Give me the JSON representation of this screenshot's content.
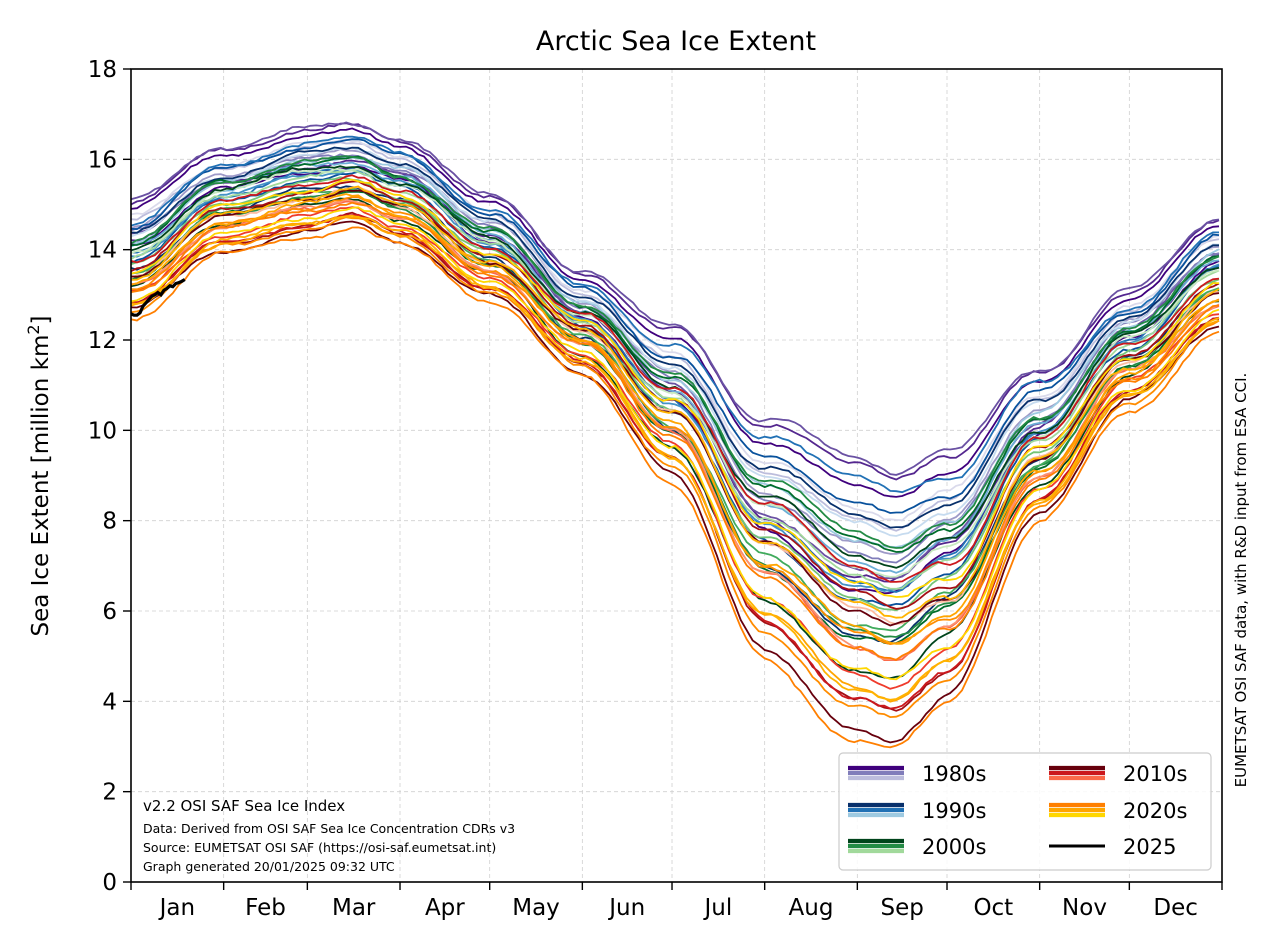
{
  "chart_data": {
    "type": "line",
    "title": "Arctic Sea Ice Extent",
    "ylabel_main": "Sea Ice Extent [million km",
    "ylabel_sup": "2",
    "ylabel_end": "]",
    "ylim": [
      0,
      18
    ],
    "yticks": [
      0,
      2,
      4,
      6,
      8,
      10,
      12,
      14,
      16,
      18
    ],
    "xlim": [
      1,
      366
    ],
    "month_labels": [
      "Jan",
      "Feb",
      "Mar",
      "Apr",
      "May",
      "Jun",
      "Jul",
      "Aug",
      "Sep",
      "Oct",
      "Nov",
      "Dec"
    ],
    "grid": true,
    "legend_position": "lower-right",
    "legend": [
      {
        "label": "1980s",
        "colors": [
          "#3f007d",
          "#807dba",
          "#bcbddc"
        ]
      },
      {
        "label": "2010s",
        "colors": [
          "#67000d",
          "#cb181d",
          "#fb6a4a"
        ]
      },
      {
        "label": "1990s",
        "colors": [
          "#08306b",
          "#2171b5",
          "#9ecae1"
        ]
      },
      {
        "label": "2020s",
        "colors": [
          "#ff7f00",
          "#ffa500",
          "#ffd700"
        ]
      },
      {
        "label": "2000s",
        "colors": [
          "#00441b",
          "#238b45",
          "#a1d99b"
        ]
      },
      {
        "label": "2025",
        "colors": [
          "#000000"
        ]
      }
    ],
    "climatology_anchor_days": [
      1,
      32,
      60,
      75,
      91,
      121,
      152,
      182,
      213,
      244,
      256,
      274,
      305,
      335,
      366
    ],
    "decades": [
      {
        "name": "1980s",
        "colors": [
          "#3f007d",
          "#54278f",
          "#6a51a3",
          "#807dba",
          "#9e9ac8",
          "#bcbddc",
          "#dadaeb"
        ],
        "anchors": [
          14.6,
          15.8,
          16.2,
          16.3,
          16.0,
          14.7,
          13.0,
          11.5,
          9.0,
          7.9,
          7.7,
          8.4,
          10.6,
          12.6,
          14.2
        ]
      },
      {
        "name": "1990s",
        "colors": [
          "#08306b",
          "#08519c",
          "#2171b5",
          "#4292c6",
          "#6baed6",
          "#9ecae1",
          "#c6dbef"
        ],
        "anchors": [
          14.1,
          15.4,
          15.9,
          16.0,
          15.7,
          14.4,
          12.7,
          11.0,
          8.5,
          7.3,
          7.1,
          7.7,
          10.3,
          12.2,
          13.9
        ]
      },
      {
        "name": "2000s",
        "colors": [
          "#00441b",
          "#006d2c",
          "#238b45",
          "#41ab5d",
          "#74c476",
          "#a1d99b",
          "#c7e9c0"
        ],
        "anchors": [
          13.7,
          15.1,
          15.5,
          15.6,
          15.2,
          14.0,
          12.3,
          10.5,
          7.8,
          6.4,
          6.2,
          6.9,
          9.6,
          11.8,
          13.4
        ]
      },
      {
        "name": "2010s",
        "colors": [
          "#67000d",
          "#a50f15",
          "#cb181d",
          "#ef3b2c",
          "#fb6a4a",
          "#fc9272",
          "#fcbba1"
        ],
        "anchors": [
          13.2,
          14.5,
          14.9,
          15.1,
          14.7,
          13.5,
          11.9,
          10.0,
          6.8,
          5.2,
          4.9,
          5.6,
          9.0,
          11.3,
          12.8
        ]
      },
      {
        "name": "2020s",
        "colors": [
          "#ff7f00",
          "#ff8c00",
          "#ffa500",
          "#ffb300",
          "#ffd700"
        ],
        "anchors": [
          13.0,
          14.4,
          14.8,
          15.0,
          14.6,
          13.4,
          11.8,
          9.8,
          6.5,
          5.0,
          4.7,
          5.4,
          8.8,
          11.0,
          12.7
        ]
      }
    ],
    "current_year": {
      "name": "2025",
      "color": "#000000",
      "days": [
        1,
        2,
        3,
        4,
        5,
        6,
        7,
        8,
        9,
        10,
        11,
        12,
        13,
        14,
        15,
        16,
        17,
        18,
        19
      ],
      "values": [
        12.58,
        12.55,
        12.55,
        12.6,
        12.75,
        12.82,
        12.9,
        12.97,
        13.0,
        13.05,
        13.0,
        13.1,
        13.14,
        13.2,
        13.18,
        13.25,
        13.27,
        13.3,
        13.34
      ]
    },
    "annotations": [
      "v2.2 OSI SAF Sea Ice Index",
      "Data: Derived from OSI SAF Sea Ice Concentration CDRs v3",
      "Source: EUMETSAT OSI SAF (https://osi-saf.eumetsat.int)",
      "Graph generated 20/01/2025 09:32 UTC"
    ],
    "side_credit": "EUMETSAT OSI SAF data, with R&D input from ESA CCI."
  }
}
